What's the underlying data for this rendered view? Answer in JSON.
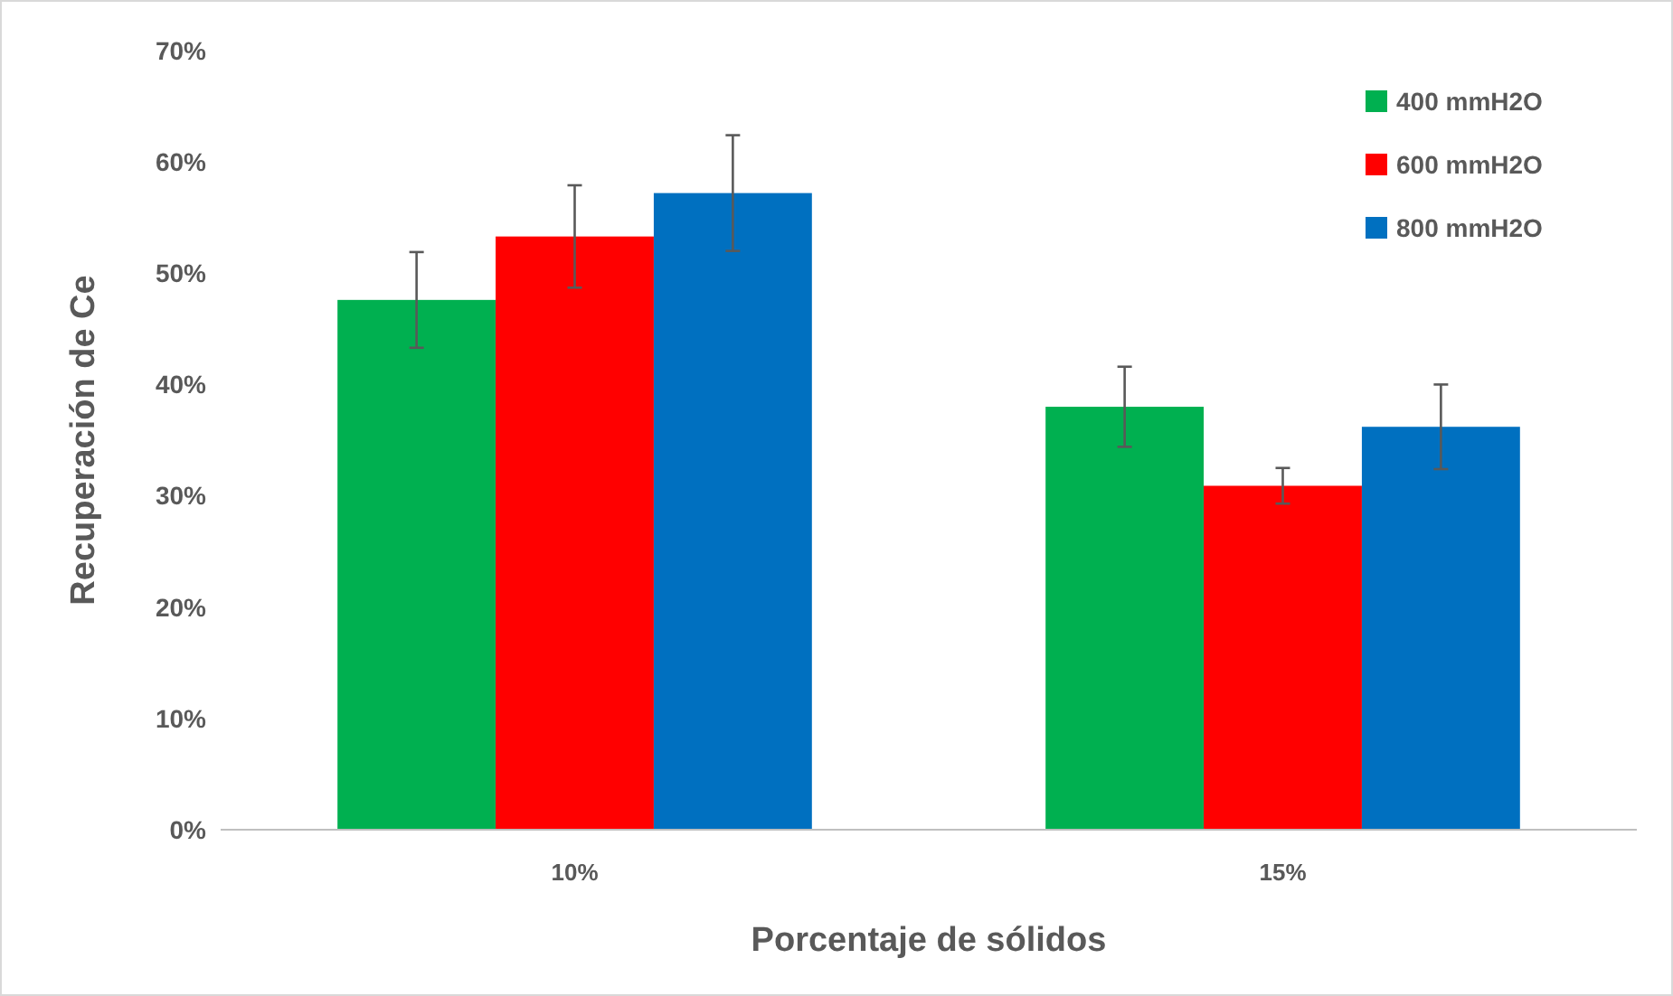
{
  "chart_data": {
    "type": "bar",
    "xlabel": "Porcentaje de sólidos",
    "ylabel": "Recuperación de Ce",
    "categories": [
      "10%",
      "15%"
    ],
    "series": [
      {
        "name": "400 mmH2O",
        "color": "#00b050",
        "values": [
          47.6,
          38.0
        ],
        "errors": [
          4.3,
          3.6
        ]
      },
      {
        "name": "600 mmH2O",
        "color": "#ff0000",
        "values": [
          53.3,
          30.9
        ],
        "errors": [
          4.6,
          1.6
        ]
      },
      {
        "name": "800 mmH2O",
        "color": "#0070c0",
        "values": [
          57.2,
          36.2
        ],
        "errors": [
          5.2,
          3.8
        ]
      }
    ],
    "ylim": [
      0,
      70
    ],
    "yticks": [
      {
        "value": 0,
        "label": "0%"
      },
      {
        "value": 10,
        "label": "10%"
      },
      {
        "value": 20,
        "label": "20%"
      },
      {
        "value": 30,
        "label": "30%"
      },
      {
        "value": 40,
        "label": "40%"
      },
      {
        "value": 50,
        "label": "50%"
      },
      {
        "value": 60,
        "label": "60%"
      },
      {
        "value": 70,
        "label": "70%"
      }
    ],
    "grid": false,
    "legend": "top right"
  }
}
